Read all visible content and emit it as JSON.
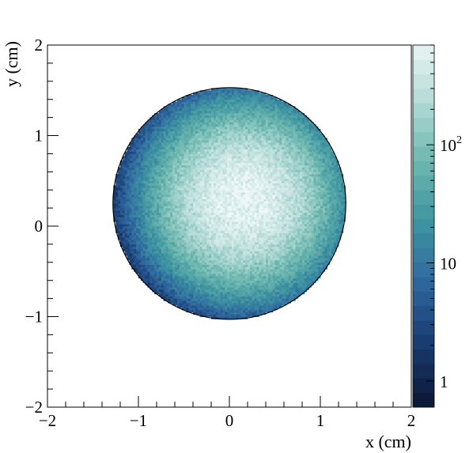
{
  "chart_data": {
    "type": "heatmap",
    "xlabel": "x (cm)",
    "ylabel": "y (cm)",
    "xlim": [
      -2,
      2
    ],
    "ylim": [
      -2,
      2
    ],
    "x_ticks": [
      "−2",
      "−1",
      "0",
      "1",
      "2"
    ],
    "y_ticks": [
      "−2",
      "−1",
      "0",
      "1",
      "2"
    ],
    "z_scale": "log",
    "z_range": [
      0.6,
      700
    ],
    "z_ticks": [
      {
        "value": 1,
        "label": "1"
      },
      {
        "value": 10,
        "label": "10"
      },
      {
        "value": 100,
        "base": "10",
        "exp": "2"
      }
    ],
    "circle": {
      "center": [
        0,
        0.25
      ],
      "radius": 1.28
    },
    "bins": {
      "n": 160,
      "range": [
        -2,
        2
      ]
    },
    "peak": {
      "center": [
        0.15,
        0.3
      ],
      "sigma": 0.42,
      "max_counts": 700
    },
    "palette": "cividis-like teal/blue",
    "colors": [
      "#0d1a3a",
      "#1a3d73",
      "#2f6aa0",
      "#3f96a0",
      "#6fb8b0",
      "#b8dcd8",
      "#eef7f7"
    ]
  }
}
